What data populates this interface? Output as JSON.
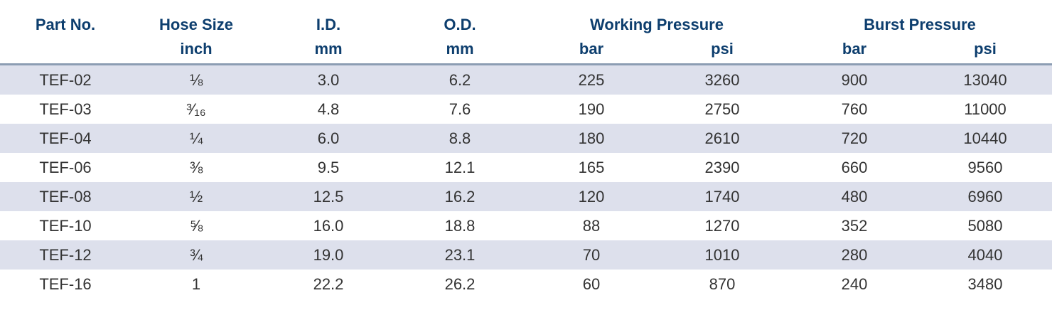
{
  "table": {
    "headers": {
      "part_no": "Part No.",
      "hose_size": "Hose Size",
      "hose_size_unit": "inch",
      "id": "I.D.",
      "id_unit": "mm",
      "od": "O.D.",
      "od_unit": "mm",
      "working_pressure": "Working Pressure",
      "working_bar": "bar",
      "working_psi": "psi",
      "burst_pressure": "Burst Pressure",
      "burst_bar": "bar",
      "burst_psi": "psi"
    },
    "rows": [
      {
        "part": "TEF-02",
        "size": "⅛",
        "id": "3.0",
        "od": "6.2",
        "wp_bar": "225",
        "wp_psi": "3260",
        "bp_bar": "900",
        "bp_psi": "13040"
      },
      {
        "part": "TEF-03",
        "size": "³⁄₁₆",
        "id": "4.8",
        "od": "7.6",
        "wp_bar": "190",
        "wp_psi": "2750",
        "bp_bar": "760",
        "bp_psi": "11000"
      },
      {
        "part": "TEF-04",
        "size": "¼",
        "id": "6.0",
        "od": "8.8",
        "wp_bar": "180",
        "wp_psi": "2610",
        "bp_bar": "720",
        "bp_psi": "10440"
      },
      {
        "part": "TEF-06",
        "size": "⅜",
        "id": "9.5",
        "od": "12.1",
        "wp_bar": "165",
        "wp_psi": "2390",
        "bp_bar": "660",
        "bp_psi": "9560"
      },
      {
        "part": "TEF-08",
        "size": "½",
        "id": "12.5",
        "od": "16.2",
        "wp_bar": "120",
        "wp_psi": "1740",
        "bp_bar": "480",
        "bp_psi": "6960"
      },
      {
        "part": "TEF-10",
        "size": "⅝",
        "id": "16.0",
        "od": "18.8",
        "wp_bar": "88",
        "wp_psi": "1270",
        "bp_bar": "352",
        "bp_psi": "5080"
      },
      {
        "part": "TEF-12",
        "size": "¾",
        "id": "19.0",
        "od": "23.1",
        "wp_bar": "70",
        "wp_psi": "1010",
        "bp_bar": "280",
        "bp_psi": "4040"
      },
      {
        "part": "TEF-16",
        "size": "1",
        "id": "22.2",
        "od": "26.2",
        "wp_bar": "60",
        "wp_psi": "870",
        "bp_bar": "240",
        "bp_psi": "3480"
      }
    ]
  }
}
